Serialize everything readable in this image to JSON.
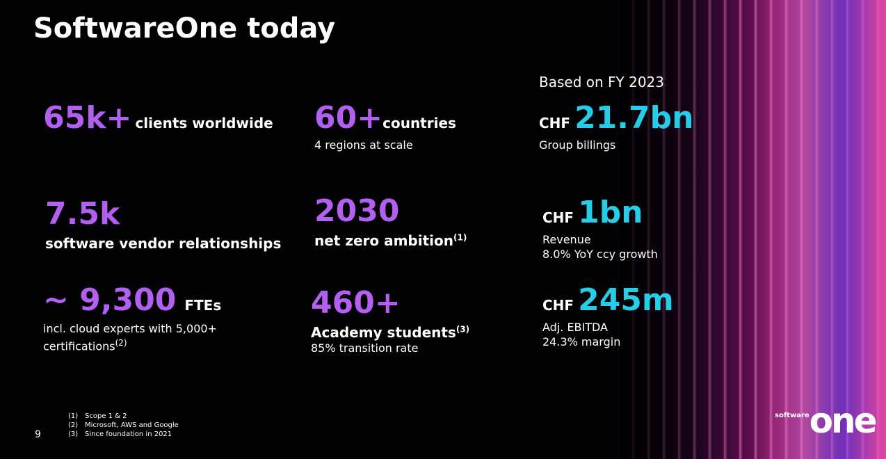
{
  "title": "SoftwareOne today",
  "basis": "Based on FY 2023",
  "stats": [
    {
      "value": "65k+",
      "label": "clients worldwide"
    },
    {
      "value": "60+",
      "label": "countries",
      "detail": "4 regions at scale"
    },
    {
      "prefix": "CHF",
      "value": "21.7bn",
      "detail": "Group billings"
    },
    {
      "value": "7.5k",
      "label": "software vendor relationships"
    },
    {
      "value": "2030",
      "label": "net zero ambition",
      "note": "(1)"
    },
    {
      "prefix": "CHF",
      "value": "1bn",
      "detail": "Revenue",
      "detail2": "8.0% YoY ccy growth"
    },
    {
      "value": "~ 9,300",
      "label": "FTEs",
      "detail": "incl. cloud experts with 5,000+",
      "detail2": "certifications",
      "note": "(2)"
    },
    {
      "value": "460+",
      "label": "Academy students",
      "note": "(3)",
      "detail": "85% transition rate"
    },
    {
      "prefix": "CHF",
      "value": "245m",
      "detail": "Adj. EBITDA",
      "detail2": "24.3% margin"
    }
  ],
  "footnotes": [
    {
      "marker": "(1)",
      "text": "Scope 1 & 2"
    },
    {
      "marker": "(2)",
      "text": "Microsoft, AWS and Google"
    },
    {
      "marker": "(3)",
      "text": "Since foundation in 2021"
    }
  ],
  "page_number": 9,
  "logo": {
    "small": "software",
    "large": "one"
  }
}
